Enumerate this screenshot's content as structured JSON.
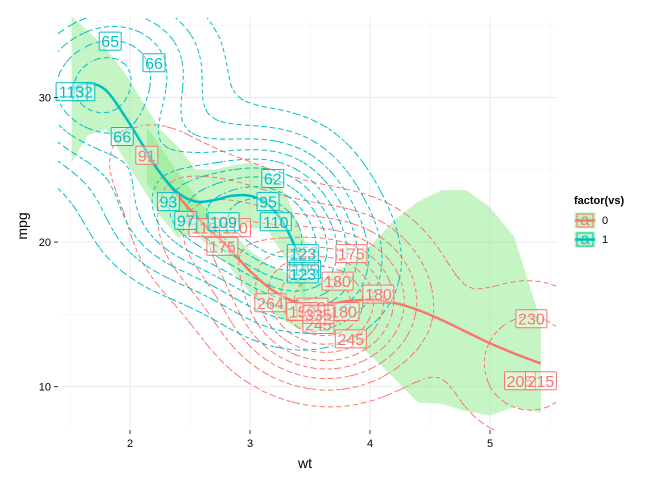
{
  "chart_data": {
    "type": "scatter",
    "xlabel": "wt",
    "ylabel": "mpg",
    "xlim": [
      1.4,
      5.55
    ],
    "ylim": [
      7.0,
      35.5
    ],
    "x_ticks": [
      2,
      3,
      4,
      5
    ],
    "y_ticks": [
      10,
      20,
      30
    ],
    "grid": true,
    "legend": {
      "title": "factor(vs)",
      "position": "right",
      "items": [
        {
          "label": "0",
          "color": "#f8766d"
        },
        {
          "label": "1",
          "color": "#00bfc4"
        }
      ]
    },
    "ribbon_color": "#7fe87f",
    "points": [
      {
        "wt": 2.62,
        "mpg": 21.0,
        "label": "110",
        "vs": "0"
      },
      {
        "wt": 2.875,
        "mpg": 21.0,
        "label": "110",
        "vs": "0"
      },
      {
        "wt": 2.32,
        "mpg": 22.8,
        "label": "93",
        "vs": "1"
      },
      {
        "wt": 3.215,
        "mpg": 21.4,
        "label": "110",
        "vs": "1"
      },
      {
        "wt": 3.44,
        "mpg": 18.7,
        "label": "175",
        "vs": "0"
      },
      {
        "wt": 3.46,
        "mpg": 18.1,
        "label": "105",
        "vs": "1"
      },
      {
        "wt": 3.57,
        "mpg": 14.3,
        "label": "245",
        "vs": "0"
      },
      {
        "wt": 3.19,
        "mpg": 24.4,
        "label": "62",
        "vs": "1"
      },
      {
        "wt": 3.15,
        "mpg": 22.8,
        "label": "95",
        "vs": "1"
      },
      {
        "wt": 3.44,
        "mpg": 19.2,
        "label": "123",
        "vs": "1"
      },
      {
        "wt": 3.44,
        "mpg": 17.8,
        "label": "123",
        "vs": "1"
      },
      {
        "wt": 4.07,
        "mpg": 16.4,
        "label": "180",
        "vs": "0"
      },
      {
        "wt": 3.73,
        "mpg": 17.3,
        "label": "180",
        "vs": "0"
      },
      {
        "wt": 3.78,
        "mpg": 15.2,
        "label": "180",
        "vs": "0"
      },
      {
        "wt": 5.25,
        "mpg": 10.4,
        "label": "205",
        "vs": "0"
      },
      {
        "wt": 5.424,
        "mpg": 10.4,
        "label": "215",
        "vs": "0"
      },
      {
        "wt": 5.345,
        "mpg": 14.7,
        "label": "230",
        "vs": "0"
      },
      {
        "wt": 2.2,
        "mpg": 32.4,
        "label": "66",
        "vs": "1"
      },
      {
        "wt": 1.615,
        "mpg": 30.4,
        "label": "52",
        "vs": "1"
      },
      {
        "wt": 1.835,
        "mpg": 33.9,
        "label": "65",
        "vs": "1"
      },
      {
        "wt": 2.465,
        "mpg": 21.5,
        "label": "97",
        "vs": "1"
      },
      {
        "wt": 3.52,
        "mpg": 15.5,
        "label": "150",
        "vs": "0"
      },
      {
        "wt": 3.435,
        "mpg": 15.2,
        "label": "150",
        "vs": "0"
      },
      {
        "wt": 3.84,
        "mpg": 13.3,
        "label": "245",
        "vs": "0"
      },
      {
        "wt": 3.845,
        "mpg": 19.2,
        "label": "175",
        "vs": "0"
      },
      {
        "wt": 1.935,
        "mpg": 27.3,
        "label": "66",
        "vs": "1"
      },
      {
        "wt": 2.14,
        "mpg": 26.0,
        "label": "91",
        "vs": "0"
      },
      {
        "wt": 1.513,
        "mpg": 30.4,
        "label": "113",
        "vs": "1"
      },
      {
        "wt": 3.17,
        "mpg": 15.8,
        "label": "264",
        "vs": "0"
      },
      {
        "wt": 2.77,
        "mpg": 19.7,
        "label": "175",
        "vs": "0"
      },
      {
        "wt": 3.57,
        "mpg": 15.0,
        "label": "335",
        "vs": "0"
      },
      {
        "wt": 2.78,
        "mpg": 21.4,
        "label": "109",
        "vs": "1"
      }
    ],
    "smooth": [
      {
        "name": "0",
        "color": "#f8766d",
        "x": [
          2.14,
          2.4,
          2.62,
          2.8,
          3.0,
          3.2,
          3.4,
          3.6,
          3.8,
          4.0,
          4.2,
          4.4,
          4.6,
          4.8,
          5.0,
          5.2,
          5.424
        ],
        "y": [
          26.0,
          23.2,
          21.2,
          19.8,
          18.0,
          16.6,
          15.8,
          15.6,
          15.9,
          16.0,
          15.8,
          15.3,
          14.6,
          13.8,
          13.0,
          12.3,
          11.6
        ],
        "lower": [
          24.0,
          21.8,
          20.0,
          18.6,
          16.5,
          15.0,
          14.0,
          13.8,
          13.5,
          12.2,
          10.6,
          8.9,
          8.8,
          8.3,
          8.0,
          8.6,
          8.2
        ],
        "upper": [
          28.0,
          24.8,
          22.4,
          21.1,
          19.4,
          18.2,
          17.6,
          17.4,
          18.4,
          19.7,
          21.5,
          22.8,
          23.6,
          23.6,
          22.4,
          20.4,
          14.5
        ]
      },
      {
        "name": "1",
        "color": "#00bfc4",
        "x": [
          1.513,
          1.65,
          1.8,
          1.95,
          2.1,
          2.25,
          2.4,
          2.55,
          2.7,
          2.85,
          3.0,
          3.15,
          3.3,
          3.46
        ],
        "y": [
          30.6,
          31.0,
          30.5,
          28.8,
          26.8,
          24.8,
          23.4,
          22.8,
          22.9,
          23.2,
          23.2,
          22.6,
          21.0,
          18.0
        ],
        "lower": [
          25.5,
          27.4,
          27.8,
          25.8,
          23.8,
          21.8,
          20.3,
          20.6,
          20.8,
          21.1,
          21.0,
          20.8,
          18.8,
          16.0
        ],
        "upper": [
          35.6,
          34.6,
          33.4,
          31.8,
          29.8,
          27.8,
          26.6,
          25.0,
          25.0,
          25.3,
          25.5,
          25.1,
          23.3,
          20.0
        ]
      }
    ]
  }
}
